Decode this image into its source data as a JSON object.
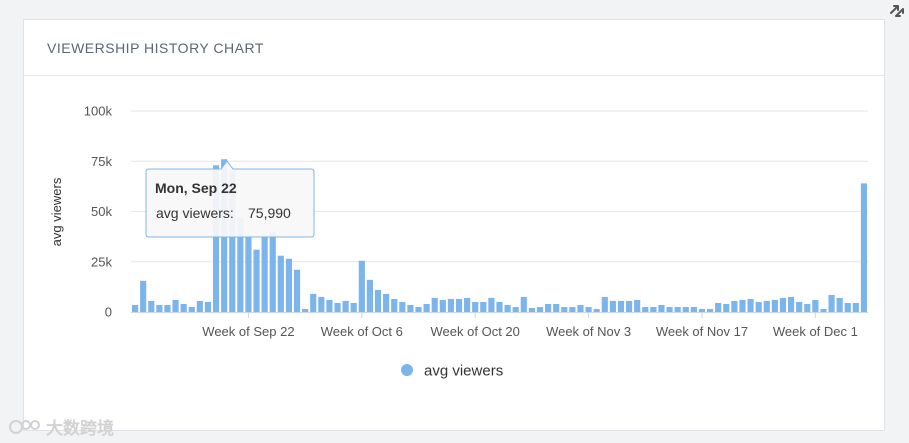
{
  "card": {
    "title": "VIEWERSHIP HISTORY CHART"
  },
  "tooltip": {
    "date": "Mon, Sep 22",
    "label": "avg viewers:",
    "value": "75,990"
  },
  "watermark": {
    "text": "大数跨境"
  },
  "colors": {
    "bar": "#7cb5ec",
    "grid": "#e6e6e6",
    "axis_text": "#555555",
    "accent": "#7cb5ec"
  },
  "icons": {
    "resize": "resize-arrows-icon",
    "watermark": "watermark-logo-icon"
  },
  "chart_data": {
    "type": "bar",
    "ylabel": "avg viewers",
    "xlabel": "",
    "ylim": [
      0,
      100000
    ],
    "y_ticks": [
      "0",
      "25k",
      "50k",
      "75k",
      "100k"
    ],
    "y_tick_values": [
      0,
      25000,
      50000,
      75000,
      100000
    ],
    "x_tick_labels": [
      "Week of Sep 22",
      "Week of Oct 6",
      "Week of Oct 20",
      "Week of Nov 3",
      "Week of Nov 17",
      "Week of Dec 1"
    ],
    "x_tick_indices": [
      14,
      28,
      42,
      56,
      70,
      84
    ],
    "legend_position": "bottom-center",
    "grid": true,
    "series": [
      {
        "name": "avg viewers",
        "values": [
          3500,
          15500,
          5500,
          3500,
          3500,
          6000,
          4000,
          2500,
          5500,
          5000,
          73000,
          75990,
          70000,
          47000,
          38000,
          31000,
          38000,
          40000,
          28000,
          26500,
          21000,
          1500,
          9000,
          7500,
          6000,
          4500,
          5500,
          4500,
          25500,
          16000,
          11000,
          9000,
          6500,
          5000,
          3500,
          2500,
          4000,
          7000,
          6000,
          6500,
          6500,
          7000,
          5000,
          5000,
          7000,
          5000,
          3500,
          2500,
          7500,
          2000,
          2500,
          4000,
          4000,
          2500,
          2500,
          3500,
          2500,
          1500,
          7500,
          5500,
          5500,
          5500,
          6000,
          2500,
          2500,
          3500,
          2500,
          2500,
          2500,
          2500,
          1500,
          1500,
          4500,
          4000,
          5500,
          6000,
          6500,
          5000,
          5500,
          6000,
          7000,
          7500,
          5000,
          4000,
          6000,
          1500,
          8500,
          7000,
          4500,
          4500,
          64000
        ]
      }
    ]
  }
}
